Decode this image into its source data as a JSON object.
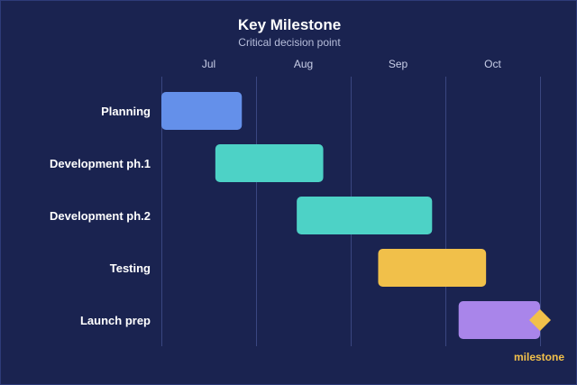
{
  "chart_data": {
    "type": "gantt",
    "title": "Key Milestone",
    "subtitle": "Critical decision point",
    "x_axis": {
      "ticks": [
        "Jul",
        "Aug",
        "Sep",
        "Oct"
      ],
      "range_months": [
        0,
        4
      ],
      "grid": true
    },
    "tasks": [
      {
        "label": "Planning",
        "start": 0.0,
        "end": 0.85,
        "color": "#6490ea"
      },
      {
        "label": "Development ph.1",
        "start": 0.57,
        "end": 1.71,
        "color": "#4dd2c6"
      },
      {
        "label": "Development ph.2",
        "start": 1.43,
        "end": 2.86,
        "color": "#4dd2c6"
      },
      {
        "label": "Testing",
        "start": 2.29,
        "end": 3.43,
        "color": "#f1c04a"
      },
      {
        "label": "Launch prep",
        "start": 3.14,
        "end": 4.0,
        "color": "#a985ea"
      }
    ],
    "milestone": {
      "label": "milestone",
      "task": "Launch prep",
      "at": 4.0,
      "color": "#f1c04a"
    },
    "background": "#1a2350"
  }
}
